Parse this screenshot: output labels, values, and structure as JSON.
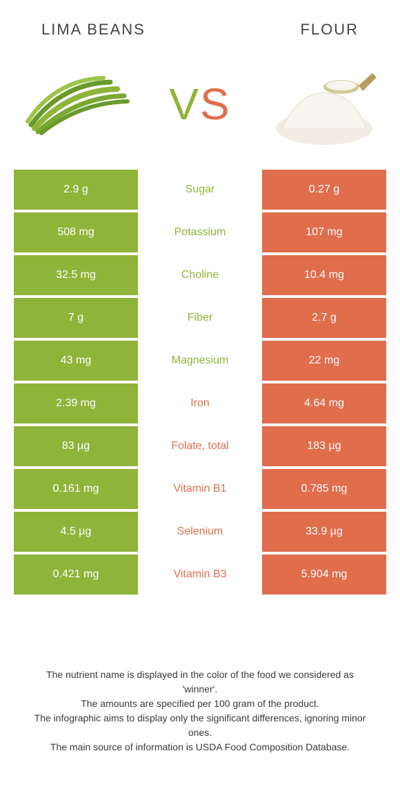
{
  "colors": {
    "left_bg": "#8fb43a",
    "right_bg": "#e06d4c",
    "left_text": "#8fb43a",
    "right_text": "#e06d4c",
    "vs_v": "#8fb43a",
    "vs_s": "#e06d4c"
  },
  "header": {
    "left_title": "Lima beans",
    "right_title": "Flour",
    "vs_v": "V",
    "vs_s": "S"
  },
  "rows": [
    {
      "left": "2.9 g",
      "label": "Sugar",
      "right": "0.27 g",
      "winner": "left"
    },
    {
      "left": "508 mg",
      "label": "Potassium",
      "right": "107 mg",
      "winner": "left"
    },
    {
      "left": "32.5 mg",
      "label": "Choline",
      "right": "10.4 mg",
      "winner": "left"
    },
    {
      "left": "7 g",
      "label": "Fiber",
      "right": "2.7 g",
      "winner": "left"
    },
    {
      "left": "43 mg",
      "label": "Magnesium",
      "right": "22 mg",
      "winner": "left"
    },
    {
      "left": "2.39 mg",
      "label": "Iron",
      "right": "4.64 mg",
      "winner": "right"
    },
    {
      "left": "83 µg",
      "label": "Folate, total",
      "right": "183 µg",
      "winner": "right"
    },
    {
      "left": "0.161 mg",
      "label": "Vitamin B1",
      "right": "0.785 mg",
      "winner": "right"
    },
    {
      "left": "4.5 µg",
      "label": "Selenium",
      "right": "33.9 µg",
      "winner": "right"
    },
    {
      "left": "0.421 mg",
      "label": "Vitamin B3",
      "right": "5.904 mg",
      "winner": "right"
    }
  ],
  "footer": {
    "line1": "The nutrient name is displayed in the color of the food we considered as 'winner'.",
    "line2": "The amounts are specified per 100 gram of the product.",
    "line3": "The infographic aims to display only the significant differences, ignoring minor ones.",
    "line4": "The main source of information is USDA Food Composition Database."
  }
}
